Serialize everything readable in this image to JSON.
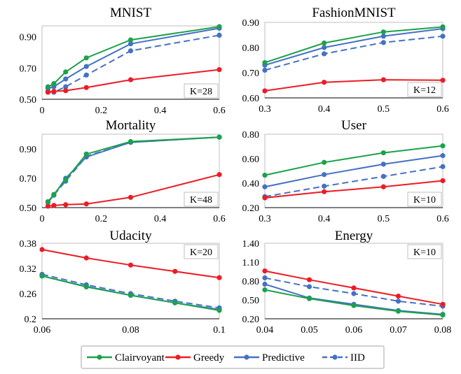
{
  "series_styles": [
    {
      "key": "clairvoyant",
      "name": "Clairvoyant",
      "color": "#1ba24a",
      "dash": false
    },
    {
      "key": "greedy",
      "name": "Greedy",
      "color": "#ee1b24",
      "dash": false
    },
    {
      "key": "predictive",
      "name": "Predictive",
      "color": "#4571c4",
      "dash": false
    },
    {
      "key": "iid",
      "name": "IID",
      "color": "#4571c4",
      "dash": true
    }
  ],
  "chart_data": [
    {
      "type": "line",
      "title": "MNIST",
      "k_label": "K=28",
      "xlim": [
        0,
        0.6
      ],
      "ylim": [
        0.5,
        0.97
      ],
      "xticks": [
        0,
        0.2,
        0.4,
        0.6
      ],
      "xtick_labels": [
        "0",
        "0.2",
        "0.4",
        "0.6"
      ],
      "yticks": [
        0.5,
        0.7,
        0.9
      ],
      "ytick_labels": [
        "0.50",
        "0.70",
        "0.90"
      ],
      "series": [
        {
          "key": "clairvoyant",
          "x": [
            0.02,
            0.04,
            0.08,
            0.15,
            0.3,
            0.6
          ],
          "y": [
            0.58,
            0.6,
            0.675,
            0.765,
            0.88,
            0.965
          ]
        },
        {
          "key": "greedy",
          "x": [
            0.02,
            0.04,
            0.08,
            0.15,
            0.3,
            0.6
          ],
          "y": [
            0.545,
            0.55,
            0.555,
            0.575,
            0.625,
            0.69
          ]
        },
        {
          "key": "predictive",
          "x": [
            0.02,
            0.04,
            0.08,
            0.15,
            0.3,
            0.6
          ],
          "y": [
            0.57,
            0.58,
            0.63,
            0.71,
            0.855,
            0.955
          ]
        },
        {
          "key": "iid",
          "x": [
            0.02,
            0.04,
            0.08,
            0.15,
            0.3,
            0.6
          ],
          "y": [
            0.55,
            0.545,
            0.58,
            0.655,
            0.81,
            0.91
          ]
        }
      ]
    },
    {
      "type": "line",
      "title": "FashionMNIST",
      "k_label": "K=12",
      "xlim": [
        0.3,
        0.6
      ],
      "ylim": [
        0.6,
        0.9
      ],
      "xticks": [
        0.3,
        0.4,
        0.5,
        0.6
      ],
      "xtick_labels": [
        "0.3",
        "0.4",
        "0.5",
        "0.6"
      ],
      "yticks": [
        0.6,
        0.7,
        0.8,
        0.9
      ],
      "ytick_labels": [
        "0.60",
        "0.70",
        "0.80",
        "0.90"
      ],
      "series": [
        {
          "key": "clairvoyant",
          "x": [
            0.3,
            0.4,
            0.5,
            0.6
          ],
          "y": [
            0.74,
            0.818,
            0.862,
            0.882
          ]
        },
        {
          "key": "greedy",
          "x": [
            0.3,
            0.4,
            0.5,
            0.6
          ],
          "y": [
            0.628,
            0.662,
            0.672,
            0.67
          ]
        },
        {
          "key": "predictive",
          "x": [
            0.3,
            0.4,
            0.5,
            0.6
          ],
          "y": [
            0.73,
            0.8,
            0.845,
            0.875
          ]
        },
        {
          "key": "iid",
          "x": [
            0.3,
            0.4,
            0.5,
            0.6
          ],
          "y": [
            0.71,
            0.775,
            0.82,
            0.845
          ]
        }
      ]
    },
    {
      "type": "line",
      "title": "Mortality",
      "k_label": "K=48",
      "xlim": [
        0,
        0.6
      ],
      "ylim": [
        0.5,
        1.0
      ],
      "xticks": [
        0,
        0.2,
        0.4,
        0.6
      ],
      "xtick_labels": [
        "0",
        "0.2",
        "0.4",
        "0.6"
      ],
      "yticks": [
        0.5,
        0.7,
        0.9
      ],
      "ytick_labels": [
        "0.50",
        "0.70",
        "0.90"
      ],
      "series": [
        {
          "key": "clairvoyant",
          "x": [
            0.02,
            0.04,
            0.08,
            0.15,
            0.3,
            0.6
          ],
          "y": [
            0.54,
            0.59,
            0.69,
            0.865,
            0.95,
            0.98
          ]
        },
        {
          "key": "greedy",
          "x": [
            0.02,
            0.04,
            0.08,
            0.15,
            0.3,
            0.6
          ],
          "y": [
            0.51,
            0.515,
            0.52,
            0.525,
            0.57,
            0.725
          ]
        },
        {
          "key": "predictive",
          "x": [
            0.02,
            0.04,
            0.08,
            0.15,
            0.3,
            0.6
          ],
          "y": [
            0.54,
            0.585,
            0.7,
            0.845,
            0.945,
            0.98
          ]
        },
        {
          "key": "iid",
          "x": [
            0.02,
            0.04,
            0.08,
            0.15,
            0.3,
            0.6
          ],
          "y": [
            0.535,
            0.585,
            0.68,
            0.85,
            0.945,
            0.98
          ]
        }
      ]
    },
    {
      "type": "line",
      "title": "User",
      "k_label": "K=10",
      "xlim": [
        0.3,
        0.6
      ],
      "ylim": [
        0.2,
        0.8
      ],
      "xticks": [
        0.3,
        0.4,
        0.5,
        0.6
      ],
      "xtick_labels": [
        "0.3",
        "0.4",
        "0.5",
        "0.6"
      ],
      "yticks": [
        0.2,
        0.4,
        0.6,
        0.8
      ],
      "ytick_labels": [
        "0.20",
        "0.40",
        "0.60",
        "0.80"
      ],
      "series": [
        {
          "key": "clairvoyant",
          "x": [
            0.3,
            0.4,
            0.5,
            0.6
          ],
          "y": [
            0.465,
            0.57,
            0.648,
            0.705
          ]
        },
        {
          "key": "greedy",
          "x": [
            0.3,
            0.4,
            0.5,
            0.6
          ],
          "y": [
            0.28,
            0.33,
            0.37,
            0.42
          ]
        },
        {
          "key": "predictive",
          "x": [
            0.3,
            0.4,
            0.5,
            0.6
          ],
          "y": [
            0.37,
            0.47,
            0.555,
            0.625
          ]
        },
        {
          "key": "iid",
          "x": [
            0.3,
            0.4,
            0.5,
            0.6
          ],
          "y": [
            0.29,
            0.375,
            0.455,
            0.535
          ]
        }
      ]
    },
    {
      "type": "line",
      "title": "Udacity",
      "k_label": "K=20",
      "xlim": [
        0.06,
        0.1
      ],
      "ylim": [
        0.2,
        0.38
      ],
      "xticks": [
        0.06,
        0.08,
        0.1
      ],
      "xtick_labels": [
        "0.06",
        "0.08",
        "0.1"
      ],
      "yticks": [
        0.2,
        0.26,
        0.32,
        0.38
      ],
      "ytick_labels": [
        "0.2",
        "0.26",
        "0.32",
        "0.38"
      ],
      "series": [
        {
          "key": "clairvoyant",
          "x": [
            0.06,
            0.07,
            0.08,
            0.09,
            0.1
          ],
          "y": [
            0.302,
            0.276,
            0.256,
            0.238,
            0.22
          ]
        },
        {
          "key": "greedy",
          "x": [
            0.06,
            0.07,
            0.08,
            0.09,
            0.1
          ],
          "y": [
            0.365,
            0.345,
            0.328,
            0.313,
            0.298
          ]
        },
        {
          "key": "predictive",
          "x": [
            0.06,
            0.07,
            0.08,
            0.09,
            0.1
          ],
          "y": [
            0.302,
            0.277,
            0.256,
            0.238,
            0.222
          ]
        },
        {
          "key": "iid",
          "x": [
            0.06,
            0.07,
            0.08,
            0.09,
            0.1
          ],
          "y": [
            0.306,
            0.281,
            0.26,
            0.242,
            0.226
          ]
        }
      ]
    },
    {
      "type": "line",
      "title": "Energy",
      "k_label": "K=10",
      "xlim": [
        0.04,
        0.08
      ],
      "ylim": [
        0.2,
        1.4
      ],
      "xticks": [
        0.04,
        0.05,
        0.06,
        0.07,
        0.08
      ],
      "xtick_labels": [
        "0.04",
        "0.05",
        "0.06",
        "0.07",
        "0.08"
      ],
      "yticks": [
        0.2,
        0.5,
        0.8,
        1.1,
        1.4
      ],
      "ytick_labels": [
        "0.20",
        "0.50",
        "0.80",
        "1.10",
        "1.40"
      ],
      "series": [
        {
          "key": "clairvoyant",
          "x": [
            0.04,
            0.05,
            0.06,
            0.07,
            0.08
          ],
          "y": [
            0.66,
            0.52,
            0.41,
            0.32,
            0.26
          ]
        },
        {
          "key": "greedy",
          "x": [
            0.04,
            0.05,
            0.06,
            0.07,
            0.08
          ],
          "y": [
            0.96,
            0.82,
            0.69,
            0.56,
            0.43
          ]
        },
        {
          "key": "predictive",
          "x": [
            0.04,
            0.05,
            0.06,
            0.07,
            0.08
          ],
          "y": [
            0.75,
            0.53,
            0.43,
            0.33,
            0.27
          ]
        },
        {
          "key": "iid",
          "x": [
            0.04,
            0.05,
            0.06,
            0.07,
            0.08
          ],
          "y": [
            0.85,
            0.71,
            0.6,
            0.48,
            0.4
          ]
        }
      ]
    }
  ]
}
